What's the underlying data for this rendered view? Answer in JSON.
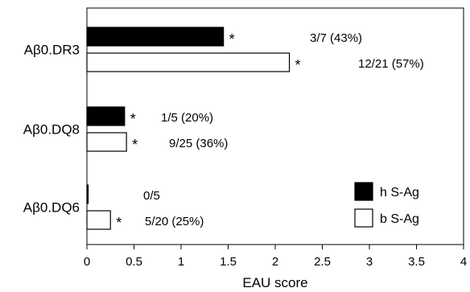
{
  "chart_data": {
    "type": "bar",
    "orientation": "horizontal",
    "categories": [
      "Aβ0.DR3",
      "Aβ0.DQ8",
      "Aβ0.DQ6"
    ],
    "series": [
      {
        "name": "h S-Ag",
        "fill": "#000000",
        "values": [
          1.45,
          0.4,
          0.01
        ],
        "significant": [
          true,
          true,
          false
        ],
        "labels": [
          "3/7 (43%)",
          "1/5 (20%)",
          "0/5"
        ]
      },
      {
        "name": "b S-Ag",
        "fill": "#ffffff",
        "values": [
          2.15,
          0.42,
          0.25
        ],
        "significant": [
          true,
          true,
          true
        ],
        "labels": [
          "12/21 (57%)",
          "9/25 (36%)",
          "5/20 (25%)"
        ]
      }
    ],
    "significance_marker": "*",
    "xlabel": "EAU score",
    "xlim": [
      0,
      4
    ],
    "xticks": [
      "0",
      "0.5",
      "1",
      "1.5",
      "2",
      "2.5",
      "3",
      "3.5",
      "4"
    ],
    "grid": false,
    "legend_position": "bottom-right"
  }
}
